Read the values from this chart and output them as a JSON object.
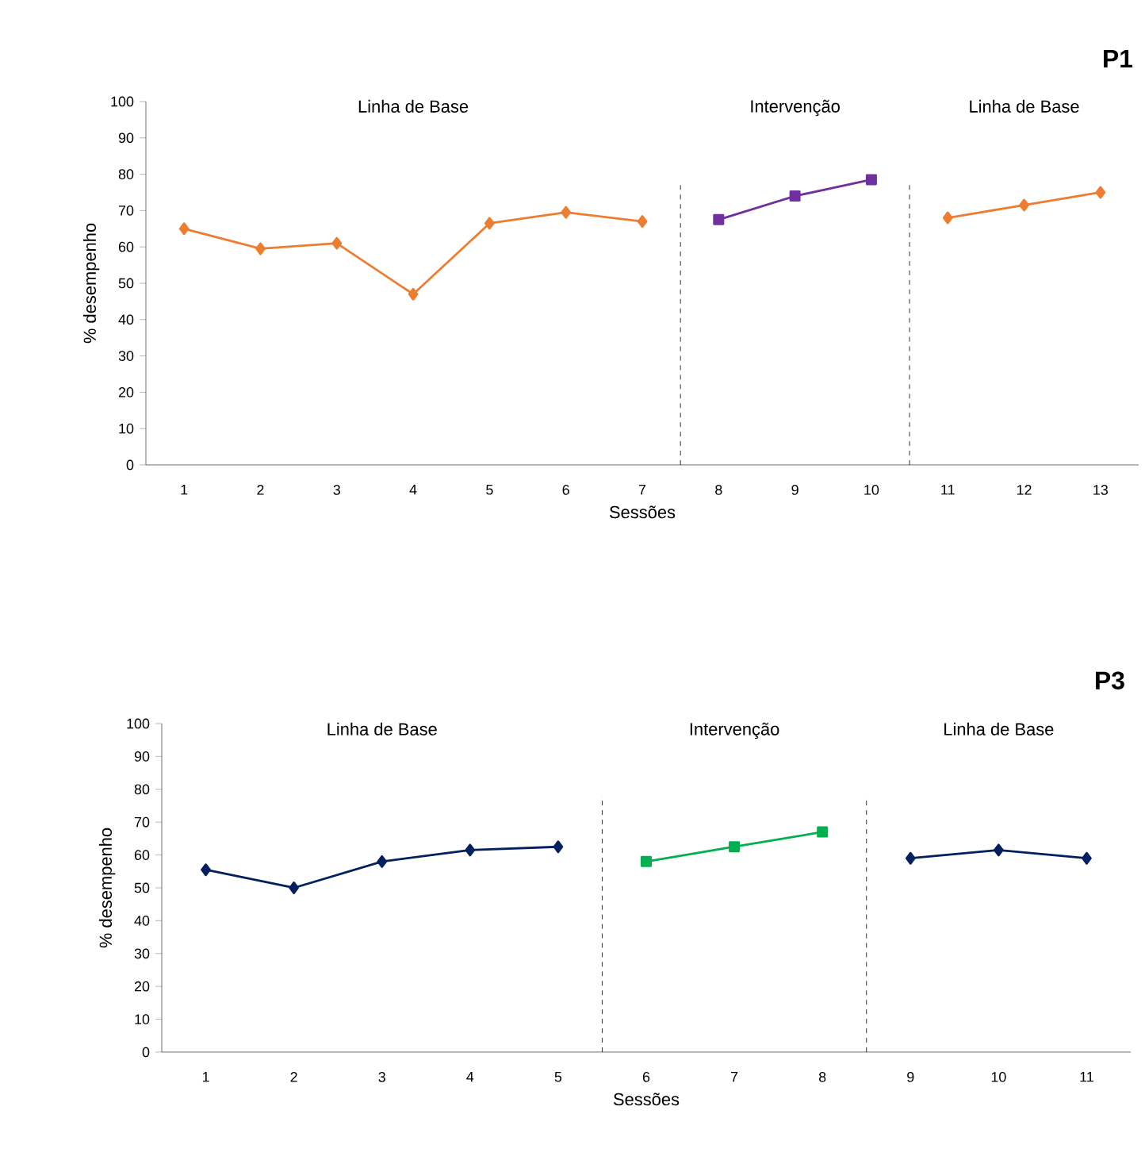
{
  "chart_data": [
    {
      "type": "line",
      "title": "P1",
      "xlabel": "Sessões",
      "ylabel": "% desempenho",
      "x": [
        1,
        2,
        3,
        4,
        5,
        6,
        7,
        8,
        9,
        10,
        11,
        12,
        13
      ],
      "xlim": [
        0.5,
        13.5
      ],
      "xticks": [
        1,
        2,
        3,
        4,
        5,
        6,
        7,
        8,
        9,
        10,
        11,
        12,
        13
      ],
      "ylim": [
        0,
        100
      ],
      "yticks": [
        0,
        10,
        20,
        30,
        40,
        50,
        60,
        70,
        80,
        90,
        100
      ],
      "series": [
        {
          "color": "#ed7d31",
          "marker": "diamond",
          "values": [
            65,
            59.5,
            61,
            47,
            66.5,
            69.5,
            67,
            null,
            null,
            null,
            null,
            null,
            null
          ]
        },
        {
          "color": "#7030a0",
          "marker": "square",
          "values": [
            null,
            null,
            null,
            null,
            null,
            null,
            null,
            67.5,
            74,
            78.5,
            null,
            null,
            null
          ]
        },
        {
          "color": "#ed7d31",
          "marker": "diamond",
          "values": [
            null,
            null,
            null,
            null,
            null,
            null,
            null,
            null,
            null,
            null,
            68,
            71.5,
            75
          ]
        }
      ],
      "ref_lines": [
        {
          "axis": "x",
          "value": 7.5,
          "line_style": "dashed",
          "color": "#000000"
        },
        {
          "axis": "x",
          "value": 10.5,
          "line_style": "dashed",
          "color": "#000000"
        }
      ],
      "annotations": [
        "Linha de Base",
        "Intervenção",
        "Linha de Base"
      ],
      "grid": false
    },
    {
      "type": "line",
      "title": "P3",
      "xlabel": "Sessões",
      "ylabel": "% desempenho",
      "x": [
        1,
        2,
        3,
        4,
        5,
        6,
        7,
        8,
        9,
        10,
        11
      ],
      "xlim": [
        0.5,
        11.5
      ],
      "xticks": [
        1,
        2,
        3,
        4,
        5,
        6,
        7,
        8,
        9,
        10,
        11
      ],
      "ylim": [
        0,
        100
      ],
      "yticks": [
        0,
        10,
        20,
        30,
        40,
        50,
        60,
        70,
        80,
        90,
        100
      ],
      "series": [
        {
          "color": "#002060",
          "marker": "diamond",
          "values": [
            55.5,
            50,
            58,
            61.5,
            62.5,
            null,
            null,
            null,
            null,
            null,
            null
          ]
        },
        {
          "color": "#00b050",
          "marker": "square",
          "values": [
            null,
            null,
            null,
            null,
            null,
            58,
            62.5,
            67,
            null,
            null,
            null
          ]
        },
        {
          "color": "#002060",
          "marker": "diamond",
          "values": [
            null,
            null,
            null,
            null,
            null,
            null,
            null,
            null,
            59,
            61.5,
            59
          ]
        }
      ],
      "ref_lines": [
        {
          "axis": "x",
          "value": 5.5,
          "line_style": "dashed",
          "color": "#000000"
        },
        {
          "axis": "x",
          "value": 8.5,
          "line_style": "dashed",
          "color": "#000000"
        }
      ],
      "annotations": [
        "Linha de Base",
        "Intervenção",
        "Linha de Base"
      ],
      "grid": false
    }
  ]
}
